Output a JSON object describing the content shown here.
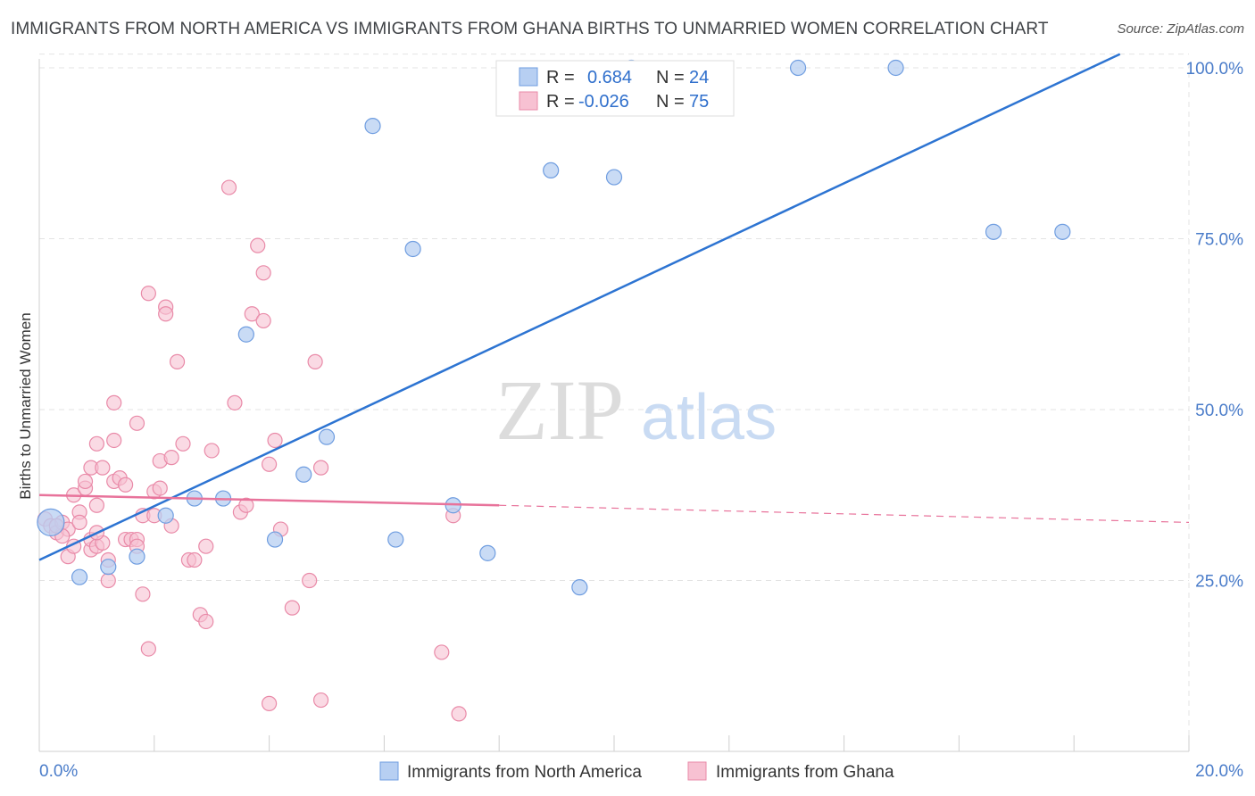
{
  "title": "IMMIGRANTS FROM NORTH AMERICA VS IMMIGRANTS FROM GHANA BIRTHS TO UNMARRIED WOMEN CORRELATION CHART",
  "source": "Source: ZipAtlas.com",
  "watermark": {
    "zip": "ZIP",
    "atlas": "atlas"
  },
  "legend": {
    "r_label": "R =",
    "n_label": "N =",
    "rows": [
      {
        "r": "0.684",
        "n": "24"
      },
      {
        "r": "-0.026",
        "n": "75"
      }
    ]
  },
  "chart_data": {
    "type": "scatter",
    "title": "IMMIGRANTS FROM NORTH AMERICA VS IMMIGRANTS FROM GHANA BIRTHS TO UNMARRIED WOMEN CORRELATION CHART",
    "xlabel": "",
    "ylabel": "Births to Unmarried Women",
    "xlim": [
      0,
      20
    ],
    "ylim": [
      0,
      102
    ],
    "x_tick_labels": [
      "0.0%",
      "20.0%"
    ],
    "y_tick_labels": [
      "25.0%",
      "50.0%",
      "75.0%",
      "100.0%"
    ],
    "y_ticks": [
      25,
      50,
      75,
      100
    ],
    "grid": true,
    "legend_position": "top-center",
    "colors": {
      "north_america_fill": "#b7cff2",
      "north_america_stroke": "#6f9de0",
      "north_america_line": "#2d74d2",
      "ghana_fill": "#f7c1d2",
      "ghana_stroke": "#e98aa8",
      "ghana_line": "#e8739b"
    },
    "series": [
      {
        "name": "Immigrants from North America",
        "r": 0.684,
        "n": 24,
        "trend": {
          "x": [
            0,
            18.8
          ],
          "y": [
            28,
            102
          ]
        },
        "points": [
          {
            "x": 0.2,
            "y": 33.5,
            "big": true
          },
          {
            "x": 0.7,
            "y": 25.5
          },
          {
            "x": 1.2,
            "y": 27
          },
          {
            "x": 1.7,
            "y": 28.5
          },
          {
            "x": 2.2,
            "y": 34.5
          },
          {
            "x": 2.7,
            "y": 37
          },
          {
            "x": 3.2,
            "y": 37
          },
          {
            "x": 3.6,
            "y": 61
          },
          {
            "x": 4.1,
            "y": 31
          },
          {
            "x": 4.6,
            "y": 40.5
          },
          {
            "x": 5.0,
            "y": 46
          },
          {
            "x": 5.8,
            "y": 91.5
          },
          {
            "x": 6.2,
            "y": 31
          },
          {
            "x": 6.5,
            "y": 73.5
          },
          {
            "x": 7.2,
            "y": 36
          },
          {
            "x": 7.8,
            "y": 29
          },
          {
            "x": 8.9,
            "y": 85
          },
          {
            "x": 9.4,
            "y": 24
          },
          {
            "x": 10.0,
            "y": 84
          },
          {
            "x": 10.3,
            "y": 100
          },
          {
            "x": 13.2,
            "y": 100
          },
          {
            "x": 14.9,
            "y": 100
          },
          {
            "x": 16.6,
            "y": 76
          },
          {
            "x": 17.8,
            "y": 76
          }
        ]
      },
      {
        "name": "Immigrants from Ghana",
        "r": -0.026,
        "n": 75,
        "trend": {
          "x": [
            0,
            8.0
          ],
          "y": [
            37.5,
            36
          ]
        },
        "trend_dashed": {
          "x": [
            8.0,
            20
          ],
          "y": [
            36,
            33.5
          ]
        },
        "points": [
          {
            "x": 0.1,
            "y": 34
          },
          {
            "x": 0.2,
            "y": 33
          },
          {
            "x": 0.3,
            "y": 32
          },
          {
            "x": 0.4,
            "y": 33.5
          },
          {
            "x": 0.5,
            "y": 32.5
          },
          {
            "x": 0.5,
            "y": 28.5
          },
          {
            "x": 0.6,
            "y": 37.5
          },
          {
            "x": 0.6,
            "y": 30
          },
          {
            "x": 0.7,
            "y": 35
          },
          {
            "x": 0.7,
            "y": 33.5
          },
          {
            "x": 0.8,
            "y": 38.5
          },
          {
            "x": 0.8,
            "y": 39.5
          },
          {
            "x": 0.9,
            "y": 29.5
          },
          {
            "x": 0.9,
            "y": 31
          },
          {
            "x": 0.9,
            "y": 41.5
          },
          {
            "x": 1.0,
            "y": 36
          },
          {
            "x": 1.0,
            "y": 45
          },
          {
            "x": 1.0,
            "y": 30
          },
          {
            "x": 1.1,
            "y": 41.5
          },
          {
            "x": 1.1,
            "y": 30.5
          },
          {
            "x": 1.2,
            "y": 28
          },
          {
            "x": 1.2,
            "y": 25
          },
          {
            "x": 1.3,
            "y": 45.5
          },
          {
            "x": 1.3,
            "y": 39.5
          },
          {
            "x": 1.3,
            "y": 51
          },
          {
            "x": 1.4,
            "y": 40
          },
          {
            "x": 1.5,
            "y": 31
          },
          {
            "x": 1.5,
            "y": 39
          },
          {
            "x": 1.6,
            "y": 31
          },
          {
            "x": 1.7,
            "y": 48
          },
          {
            "x": 1.7,
            "y": 31
          },
          {
            "x": 1.7,
            "y": 30
          },
          {
            "x": 1.8,
            "y": 34.5
          },
          {
            "x": 1.8,
            "y": 23
          },
          {
            "x": 1.9,
            "y": 15
          },
          {
            "x": 1.9,
            "y": 67
          },
          {
            "x": 2.0,
            "y": 34.5
          },
          {
            "x": 2.0,
            "y": 38
          },
          {
            "x": 2.1,
            "y": 38.5
          },
          {
            "x": 2.1,
            "y": 42.5
          },
          {
            "x": 2.2,
            "y": 65
          },
          {
            "x": 2.2,
            "y": 64
          },
          {
            "x": 2.3,
            "y": 33
          },
          {
            "x": 2.3,
            "y": 43
          },
          {
            "x": 2.4,
            "y": 57
          },
          {
            "x": 2.5,
            "y": 45
          },
          {
            "x": 2.6,
            "y": 28
          },
          {
            "x": 2.7,
            "y": 28
          },
          {
            "x": 2.8,
            "y": 20
          },
          {
            "x": 2.9,
            "y": 30
          },
          {
            "x": 2.9,
            "y": 19
          },
          {
            "x": 3.0,
            "y": 44
          },
          {
            "x": 3.3,
            "y": 82.5
          },
          {
            "x": 3.4,
            "y": 51
          },
          {
            "x": 3.5,
            "y": 35
          },
          {
            "x": 3.6,
            "y": 36
          },
          {
            "x": 3.7,
            "y": 64
          },
          {
            "x": 3.8,
            "y": 74
          },
          {
            "x": 3.9,
            "y": 70
          },
          {
            "x": 3.9,
            "y": 63
          },
          {
            "x": 4.0,
            "y": 7
          },
          {
            "x": 4.0,
            "y": 42
          },
          {
            "x": 4.1,
            "y": 45.5
          },
          {
            "x": 4.2,
            "y": 32.5
          },
          {
            "x": 4.4,
            "y": 21
          },
          {
            "x": 4.7,
            "y": 25
          },
          {
            "x": 4.8,
            "y": 57
          },
          {
            "x": 4.9,
            "y": 41.5
          },
          {
            "x": 4.9,
            "y": 7.5
          },
          {
            "x": 7.0,
            "y": 14.5
          },
          {
            "x": 7.2,
            "y": 34.5
          },
          {
            "x": 7.3,
            "y": 5.5
          },
          {
            "x": 1.0,
            "y": 32
          },
          {
            "x": 0.4,
            "y": 31.5
          },
          {
            "x": 0.3,
            "y": 33
          }
        ]
      }
    ]
  }
}
